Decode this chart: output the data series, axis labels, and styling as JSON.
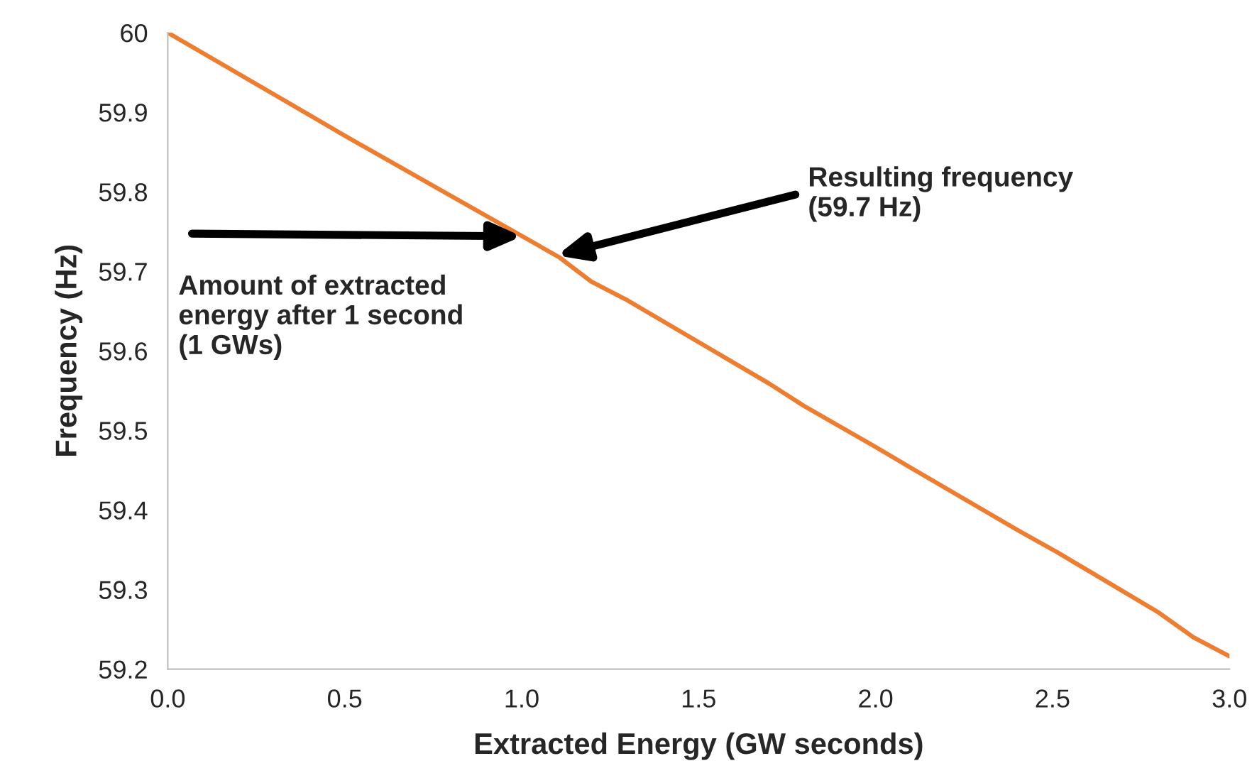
{
  "chart_data": {
    "type": "line",
    "xlabel": "Extracted Energy (GW seconds)",
    "ylabel": "Frequency (Hz)",
    "x": [
      0,
      0.41,
      0.494,
      1.105,
      1.197,
      1.293,
      1.699,
      1.797,
      1.993,
      2.1,
      2.4,
      2.513,
      2.8,
      2.898,
      3.0
    ],
    "series": [
      {
        "color": "#ed7d31",
        "values": [
          60,
          59.894,
          59.872,
          59.718,
          59.687,
          59.665,
          59.559,
          59.531,
          59.481,
          59.453,
          59.375,
          59.347,
          59.271,
          59.24,
          59.216
        ]
      }
    ],
    "xlim": [
      0,
      3
    ],
    "ylim": [
      59.2,
      60
    ],
    "xticks": [
      {
        "value": 0,
        "label": "0.0"
      },
      {
        "value": 0.5,
        "label": "0.5"
      },
      {
        "value": 1,
        "label": "1.0"
      },
      {
        "value": 1.5,
        "label": "1.5"
      },
      {
        "value": 2,
        "label": "2.0"
      },
      {
        "value": 2.5,
        "label": "2.5"
      },
      {
        "value": 3,
        "label": "3.0"
      }
    ],
    "yticks": [
      {
        "value": 59.2,
        "label": "59.2"
      },
      {
        "value": 59.3,
        "label": "59.3"
      },
      {
        "value": 59.4,
        "label": "59.4"
      },
      {
        "value": 59.5,
        "label": "59.5"
      },
      {
        "value": 59.6,
        "label": "59.6"
      },
      {
        "value": 59.7,
        "label": "59.7"
      },
      {
        "value": 59.8,
        "label": "59.8"
      },
      {
        "value": 59.9,
        "label": "59.9"
      },
      60
    ],
    "annotations": [
      {
        "text": "Resulting frequency\n(59.7 Hz)",
        "x": 1.1,
        "y": 59.72
      },
      {
        "text": "Amount of extracted\nenergy after 1 second\n(1 GWs)",
        "x": 1.0,
        "y": 59.744
      }
    ],
    "grid": false,
    "legend": false,
    "marker": "none",
    "line_style": "solid"
  }
}
